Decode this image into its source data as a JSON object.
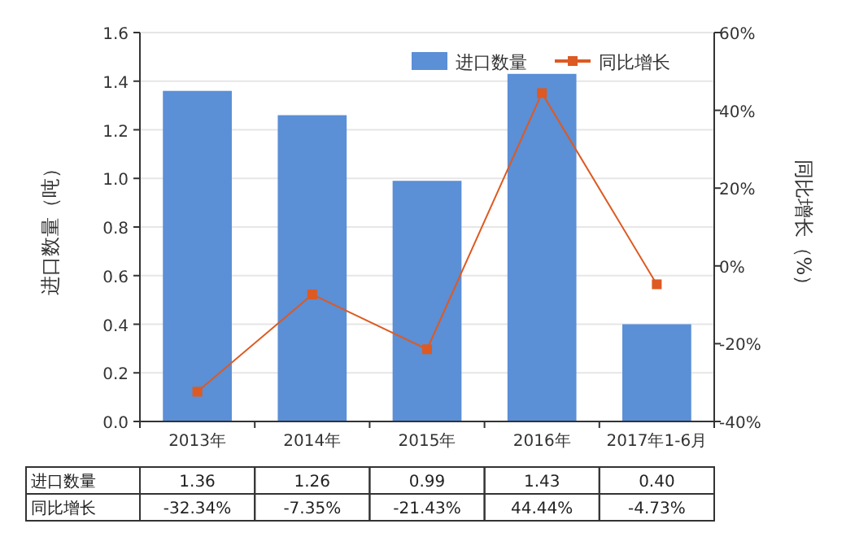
{
  "chart_data": {
    "type": "bar",
    "categories": [
      "2013年",
      "2014年",
      "2015年",
      "2016年",
      "2017年1-6月"
    ],
    "series": [
      {
        "name": "进口数量",
        "color": "#5b8fd6",
        "values": [
          1.36,
          1.26,
          0.99,
          1.43,
          0.4
        ],
        "value_labels": [
          "1.36",
          "1.26",
          "0.99",
          "1.43",
          "0.40"
        ]
      },
      {
        "name": "同比增长",
        "type": "line",
        "axis": "y2",
        "color": "#dd5a22",
        "values": [
          -32.34,
          -7.35,
          -21.43,
          44.44,
          -4.73
        ],
        "value_labels": [
          "-32.34%",
          "-7.35%",
          "-21.43%",
          "44.44%",
          "-4.73%"
        ]
      }
    ],
    "ylabel": "进口数量（吨）",
    "y2label": "同比增长（%）",
    "ylim": [
      0,
      1.6
    ],
    "yticks": [
      {
        "value": 0,
        "label": "0.0"
      },
      0.2,
      0.4,
      0.6,
      0.8,
      {
        "value": 1,
        "label": "1.0"
      },
      1.2,
      1.4,
      1.6
    ],
    "y2lim": [
      -40,
      60
    ],
    "y2ticks": [
      {
        "value": -40,
        "label": "-40%"
      },
      {
        "value": -20,
        "label": "-20%"
      },
      {
        "value": 0,
        "label": "0%"
      },
      {
        "value": 20,
        "label": "20%"
      },
      {
        "value": 40,
        "label": "40%"
      },
      {
        "value": 60,
        "label": "60%"
      }
    ],
    "grid": "y",
    "legend": "top right",
    "marker": "square"
  }
}
